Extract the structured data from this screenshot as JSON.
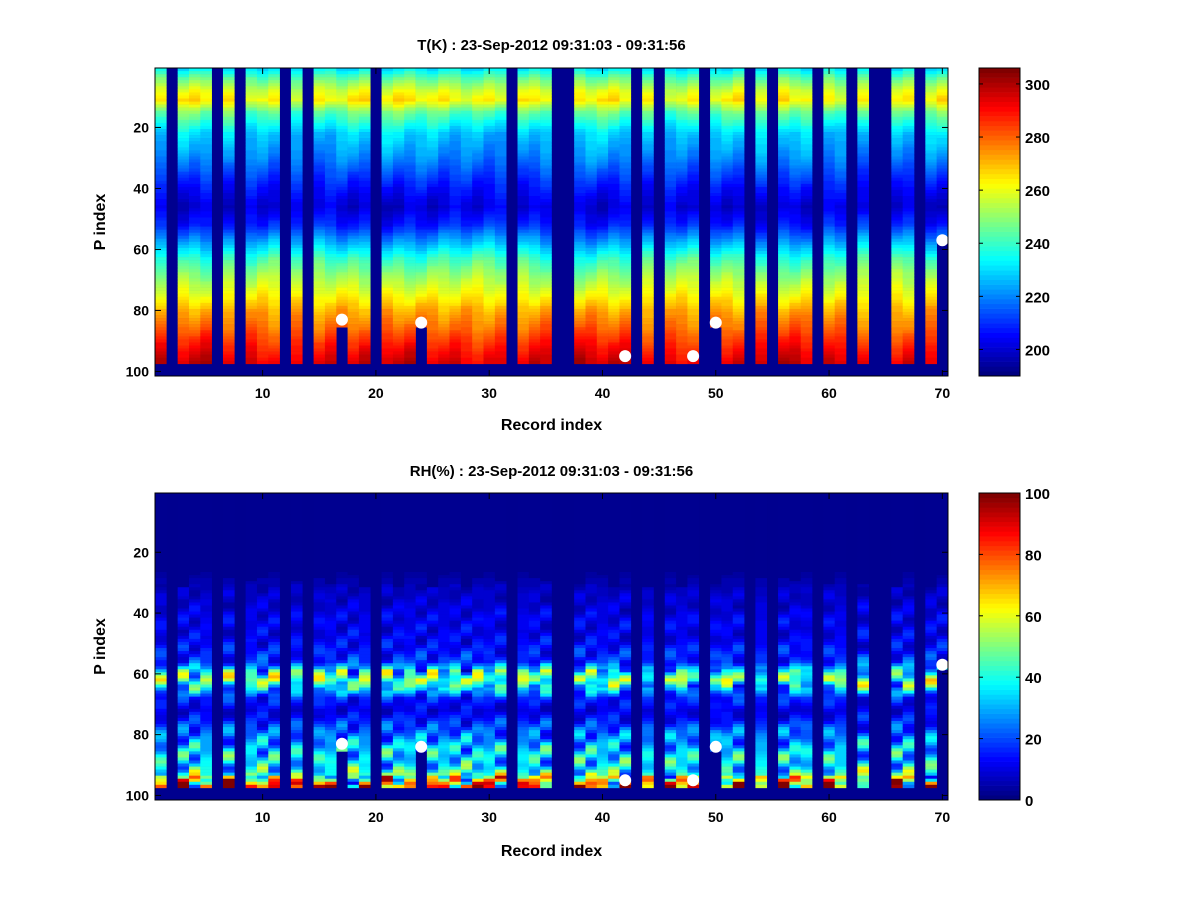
{
  "chart_data": [
    {
      "type": "heatmap",
      "title": "T(K) : 23-Sep-2012 09:31:03 - 09:31:56",
      "xlabel": "Record index",
      "ylabel": "P index",
      "xlim": [
        0.5,
        70.5
      ],
      "ylim": [
        0.5,
        101.5
      ],
      "y_reversed": true,
      "xticks": [
        "10",
        "20",
        "30",
        "40",
        "50",
        "60",
        "70"
      ],
      "yticks": [
        "20",
        "40",
        "60",
        "80",
        "100"
      ],
      "colormap": "jet",
      "clim": [
        190,
        306
      ],
      "colorbar_ticks": [
        "200",
        "220",
        "240",
        "260",
        "280",
        "300"
      ],
      "n_records": 70,
      "n_levels_with_data": 97,
      "missing_records": [
        2,
        6,
        8,
        12,
        14,
        20,
        32,
        36,
        37,
        43,
        45,
        49,
        53,
        55,
        59,
        62,
        64,
        65,
        68
      ],
      "truncated_records": [
        {
          "record": 17,
          "last_level": 85
        },
        {
          "record": 24,
          "last_level": 85
        },
        {
          "record": 50,
          "last_level": 85
        },
        {
          "record": 70,
          "last_level": 56
        }
      ],
      "surface_markers": [
        {
          "record": 17,
          "level": 83
        },
        {
          "record": 24,
          "level": 84
        },
        {
          "record": 42,
          "level": 95
        },
        {
          "record": 48,
          "level": 95
        },
        {
          "record": 50,
          "level": 84
        },
        {
          "record": 70,
          "level": 57
        }
      ],
      "mean_profile": {
        "levels": [
          1,
          4,
          8,
          11,
          15,
          22,
          30,
          40,
          46,
          52,
          58,
          63,
          68,
          75,
          80,
          86,
          91,
          97
        ],
        "values": [
          232,
          245,
          258,
          264,
          245,
          228,
          220,
          206,
          200,
          208,
          225,
          240,
          250,
          262,
          272,
          280,
          288,
          296
        ]
      }
    },
    {
      "type": "heatmap",
      "title": "RH(%) : 23-Sep-2012 09:31:03 - 09:31:56",
      "xlabel": "Record index",
      "ylabel": "P index",
      "xlim": [
        0.5,
        70.5
      ],
      "ylim": [
        0.5,
        101.5
      ],
      "y_reversed": true,
      "xticks": [
        "10",
        "20",
        "30",
        "40",
        "50",
        "60",
        "70"
      ],
      "yticks": [
        "20",
        "40",
        "60",
        "80",
        "100"
      ],
      "colormap": "jet",
      "clim": [
        0,
        100
      ],
      "colorbar_ticks": [
        "0",
        "20",
        "40",
        "60",
        "80",
        "100"
      ],
      "n_records": 70,
      "n_levels_with_data": 97,
      "missing_records": [
        2,
        6,
        8,
        12,
        14,
        20,
        32,
        36,
        37,
        43,
        45,
        49,
        53,
        55,
        59,
        62,
        64,
        65,
        68
      ],
      "truncated_records": [
        {
          "record": 17,
          "last_level": 85
        },
        {
          "record": 24,
          "last_level": 85
        },
        {
          "record": 50,
          "last_level": 85
        },
        {
          "record": 70,
          "last_level": 58
        }
      ],
      "surface_markers": [
        {
          "record": 17,
          "level": 83
        },
        {
          "record": 24,
          "level": 84
        },
        {
          "record": 42,
          "level": 95
        },
        {
          "record": 48,
          "level": 95
        },
        {
          "record": 50,
          "level": 84
        },
        {
          "record": 70,
          "level": 57
        }
      ],
      "mean_profile": {
        "levels": [
          1,
          25,
          32,
          40,
          50,
          56,
          59,
          62,
          65,
          68,
          72,
          78,
          84,
          90,
          93,
          96,
          97
        ],
        "values": [
          1,
          2,
          6,
          10,
          12,
          18,
          35,
          48,
          35,
          15,
          10,
          20,
          32,
          35,
          45,
          65,
          75
        ]
      }
    }
  ]
}
